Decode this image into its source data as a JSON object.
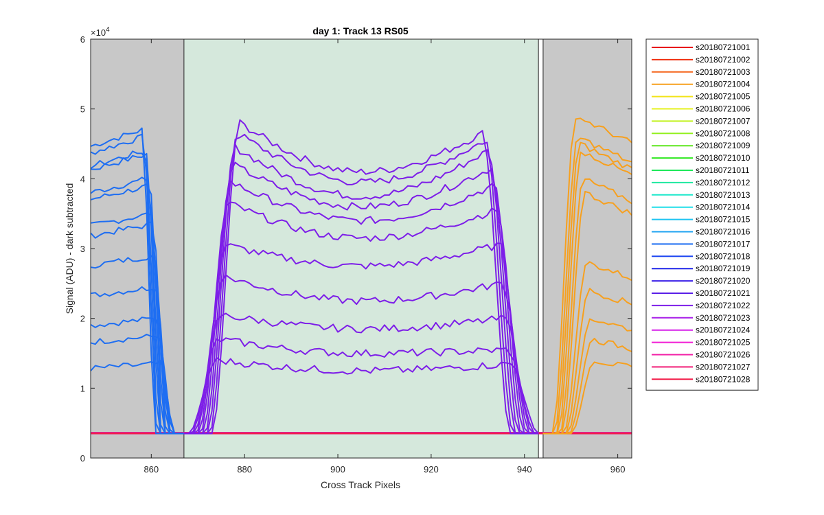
{
  "chart_data": {
    "type": "line",
    "title": "day 1: Track 13  RS05",
    "xlabel": "Cross Track Pixels",
    "ylabel": "Signal (ADU) - dark subtracted",
    "xlim": [
      847,
      963
    ],
    "ylim": [
      0,
      60000
    ],
    "y_exponent_label": "×10",
    "y_exponent_power": "4",
    "x_ticks": [
      860,
      880,
      900,
      920,
      940,
      960
    ],
    "x_tick_labels": [
      "860",
      "880",
      "900",
      "920",
      "940",
      "960"
    ],
    "y_ticks": [
      0,
      10000,
      20000,
      30000,
      40000,
      50000,
      60000
    ],
    "y_tick_labels": [
      "0",
      "1",
      "2",
      "3",
      "4",
      "5",
      "6"
    ],
    "regions": [
      {
        "x": [
          847,
          867
        ],
        "fill": "#c8c8c8"
      },
      {
        "x": [
          867,
          943
        ],
        "fill": "#d5e8dc"
      },
      {
        "x": [
          944,
          963
        ],
        "fill": "#c8c8c8"
      }
    ],
    "vertical_lines": [
      867,
      943,
      944
    ],
    "baseline": 3500,
    "legend_location": "outside right",
    "legend": [
      "s20180721001",
      "s20180721002",
      "s20180721003",
      "s20180721004",
      "s20180721005",
      "s20180721006",
      "s20180721007",
      "s20180721008",
      "s20180721009",
      "s20180721010",
      "s20180721011",
      "s20180721012",
      "s20180721013",
      "s20180721014",
      "s20180721015",
      "s20180721016",
      "s20180721017",
      "s20180721018",
      "s20180721019",
      "s20180721020",
      "s20180721021",
      "s20180721022",
      "s20180721023",
      "s20180721024",
      "s20180721025",
      "s20180721026",
      "s20180721027",
      "s20180721028"
    ],
    "legend_colors": [
      "#e8001a",
      "#f03010",
      "#f5651a",
      "#f7a01e",
      "#f2e41a",
      "#e6f21f",
      "#c2f21f",
      "#93f01f",
      "#5ee61f",
      "#2ee81f",
      "#1ee85a",
      "#1ee8a0",
      "#1ee8cc",
      "#1edde8",
      "#1ec4f2",
      "#1ea3f2",
      "#1e6ef2",
      "#1e47f2",
      "#1e25e8",
      "#3a1ee8",
      "#5a1ee8",
      "#7d1ee8",
      "#a81ee8",
      "#d51ee8",
      "#f21ed5",
      "#f21ea6",
      "#f21e78",
      "#f21e4a"
    ],
    "groups": [
      {
        "name": "left",
        "color": "#1e6ef2",
        "x_range": [
          847,
          867
        ],
        "edge": "falling",
        "edge_x": [
          858,
          865
        ],
        "plateaus": [
          47000,
          46000,
          44000,
          43500,
          40000,
          39000,
          35000,
          33500,
          29000,
          24500,
          20000,
          17500,
          13500
        ]
      },
      {
        "name": "middle",
        "color": "#7d1ee8",
        "x_range": [
          867,
          943
        ],
        "edge": "both",
        "rise_x": [
          874,
          879
        ],
        "fall_x": [
          931,
          937
        ],
        "profiles": [
          {
            "left": 48000,
            "center": 41000,
            "right": 46500
          },
          {
            "left": 46500,
            "center": 39500,
            "right": 45500
          },
          {
            "left": 44500,
            "center": 37500,
            "right": 44000
          },
          {
            "left": 42000,
            "center": 36000,
            "right": 41500
          },
          {
            "left": 39500,
            "center": 34000,
            "right": 39000
          },
          {
            "left": 36500,
            "center": 31500,
            "right": 35500
          },
          {
            "left": 30500,
            "center": 27500,
            "right": 30500
          },
          {
            "left": 26000,
            "center": 22500,
            "right": 25000
          },
          {
            "left": 20500,
            "center": 18500,
            "right": 20000
          },
          {
            "left": 17000,
            "center": 15000,
            "right": 15500
          },
          {
            "left": 14000,
            "center": 12500,
            "right": 13500
          }
        ]
      },
      {
        "name": "right",
        "color": "#f7a01e",
        "x_range": [
          944,
          963
        ],
        "edge": "rising",
        "edge_x": [
          947,
          955
        ],
        "plateaus": [
          49000,
          46000,
          45000,
          44000,
          40000,
          38000,
          28000,
          24000,
          20000,
          17000,
          14000
        ]
      }
    ]
  }
}
